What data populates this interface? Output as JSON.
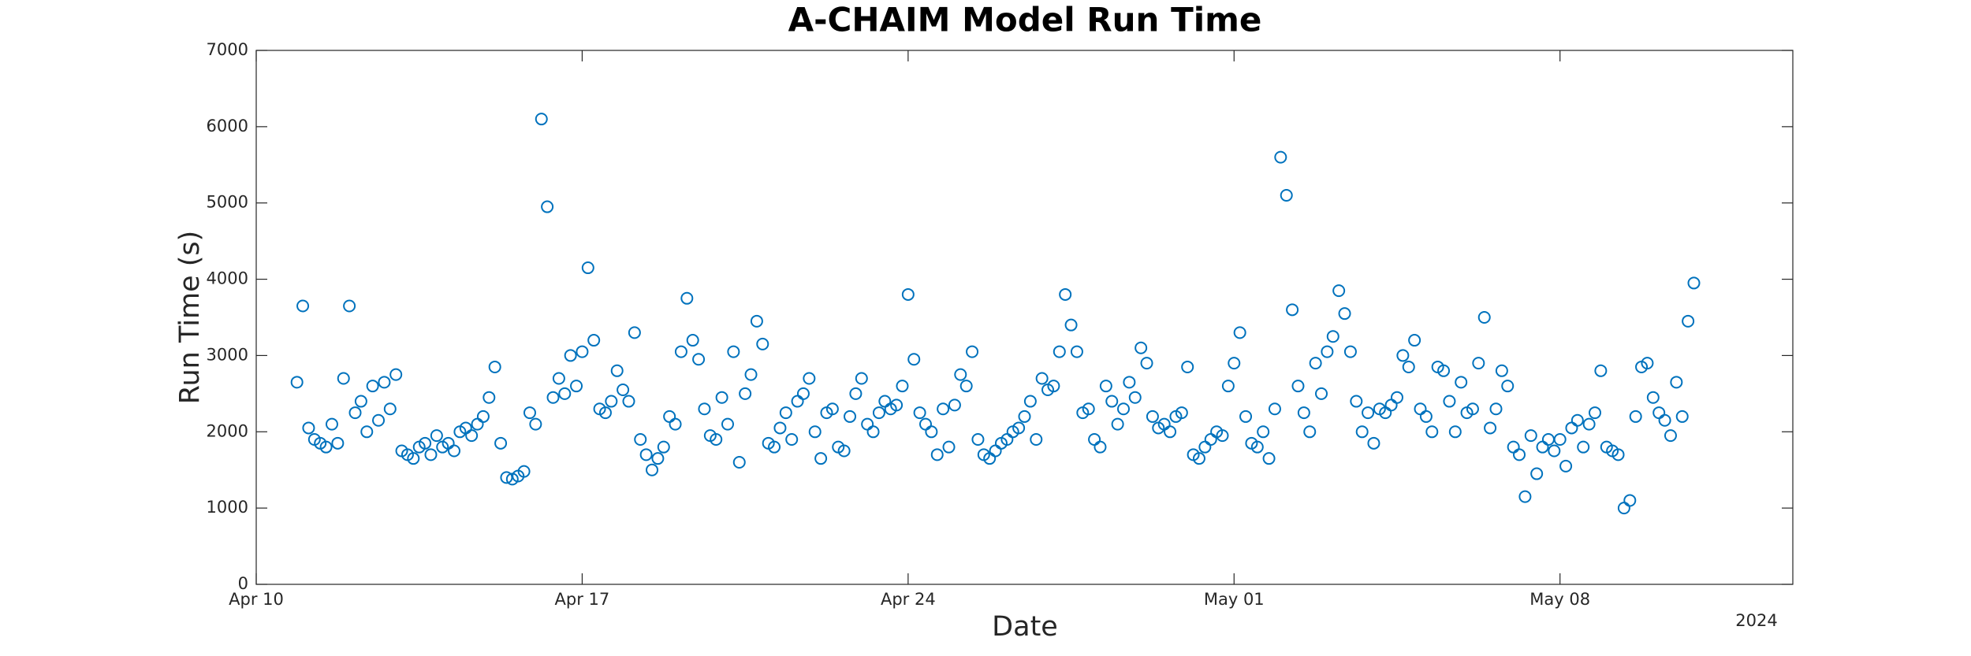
{
  "chart_data": {
    "type": "scatter",
    "title": "A-CHAIM Model Run Time",
    "xlabel": "Date",
    "ylabel": "Run Time (s)",
    "x_year_label": "2024",
    "xlim": [
      "2024-04-10",
      "2024-05-13"
    ],
    "xticks": [
      {
        "value": "2024-04-10",
        "label": "Apr 10"
      },
      {
        "value": "2024-04-17",
        "label": "Apr 17"
      },
      {
        "value": "2024-04-24",
        "label": "Apr 24"
      },
      {
        "value": "2024-05-01",
        "label": "May 01"
      },
      {
        "value": "2024-05-08",
        "label": "May 08"
      }
    ],
    "ylim": [
      0,
      7000
    ],
    "yticks": [
      0,
      1000,
      2000,
      3000,
      4000,
      5000,
      6000,
      7000
    ],
    "grid": false,
    "series": [
      {
        "name": "Run Time",
        "color": "#0072bd",
        "x": [
          "2024-04-10T21:00",
          "2024-04-11T00:00",
          "2024-04-11T03:00",
          "2024-04-11T06:00",
          "2024-04-11T09:00",
          "2024-04-11T12:00",
          "2024-04-11T15:00",
          "2024-04-11T18:00",
          "2024-04-11T21:00",
          "2024-04-12T00:00",
          "2024-04-12T03:00",
          "2024-04-12T06:00",
          "2024-04-12T09:00",
          "2024-04-12T12:00",
          "2024-04-12T15:00",
          "2024-04-12T18:00",
          "2024-04-12T21:00",
          "2024-04-13T00:00",
          "2024-04-13T03:00",
          "2024-04-13T06:00",
          "2024-04-13T09:00",
          "2024-04-13T12:00",
          "2024-04-13T15:00",
          "2024-04-13T18:00",
          "2024-04-13T21:00",
          "2024-04-14T00:00",
          "2024-04-14T03:00",
          "2024-04-14T06:00",
          "2024-04-14T09:00",
          "2024-04-14T12:00",
          "2024-04-14T15:00",
          "2024-04-14T18:00",
          "2024-04-14T21:00",
          "2024-04-15T00:00",
          "2024-04-15T03:00",
          "2024-04-15T06:00",
          "2024-04-15T09:00",
          "2024-04-15T12:00",
          "2024-04-15T15:00",
          "2024-04-15T18:00",
          "2024-04-15T21:00",
          "2024-04-16T00:00",
          "2024-04-16T03:00",
          "2024-04-16T06:00",
          "2024-04-16T09:00",
          "2024-04-16T12:00",
          "2024-04-16T15:00",
          "2024-04-16T18:00",
          "2024-04-16T21:00",
          "2024-04-17T00:00",
          "2024-04-17T03:00",
          "2024-04-17T06:00",
          "2024-04-17T09:00",
          "2024-04-17T12:00",
          "2024-04-17T15:00",
          "2024-04-17T18:00",
          "2024-04-17T21:00",
          "2024-04-18T00:00",
          "2024-04-18T03:00",
          "2024-04-18T06:00",
          "2024-04-18T09:00",
          "2024-04-18T12:00",
          "2024-04-18T15:00",
          "2024-04-18T18:00",
          "2024-04-18T21:00",
          "2024-04-19T00:00",
          "2024-04-19T03:00",
          "2024-04-19T06:00",
          "2024-04-19T09:00",
          "2024-04-19T12:00",
          "2024-04-19T15:00",
          "2024-04-19T18:00",
          "2024-04-19T21:00",
          "2024-04-20T00:00",
          "2024-04-20T03:00",
          "2024-04-20T06:00",
          "2024-04-20T09:00",
          "2024-04-20T12:00",
          "2024-04-20T15:00",
          "2024-04-20T18:00",
          "2024-04-20T21:00",
          "2024-04-21T00:00",
          "2024-04-21T03:00",
          "2024-04-21T06:00",
          "2024-04-21T09:00",
          "2024-04-21T12:00",
          "2024-04-21T15:00",
          "2024-04-21T18:00",
          "2024-04-21T21:00",
          "2024-04-22T00:00",
          "2024-04-22T03:00",
          "2024-04-22T06:00",
          "2024-04-22T09:00",
          "2024-04-22T12:00",
          "2024-04-22T15:00",
          "2024-04-22T18:00",
          "2024-04-22T21:00",
          "2024-04-23T00:00",
          "2024-04-23T03:00",
          "2024-04-23T06:00",
          "2024-04-23T09:00",
          "2024-04-23T12:00",
          "2024-04-23T15:00",
          "2024-04-23T18:00",
          "2024-04-23T21:00",
          "2024-04-24T00:00",
          "2024-04-24T03:00",
          "2024-04-24T06:00",
          "2024-04-24T09:00",
          "2024-04-24T12:00",
          "2024-04-24T15:00",
          "2024-04-24T18:00",
          "2024-04-24T21:00",
          "2024-04-25T00:00",
          "2024-04-25T03:00",
          "2024-04-25T06:00",
          "2024-04-25T09:00",
          "2024-04-25T12:00",
          "2024-04-25T15:00",
          "2024-04-25T18:00",
          "2024-04-25T21:00",
          "2024-04-26T00:00",
          "2024-04-26T03:00",
          "2024-04-26T06:00",
          "2024-04-26T09:00",
          "2024-04-26T12:00",
          "2024-04-26T15:00",
          "2024-04-26T18:00",
          "2024-04-26T21:00",
          "2024-04-27T00:00",
          "2024-04-27T03:00",
          "2024-04-27T06:00",
          "2024-04-27T09:00",
          "2024-04-27T12:00",
          "2024-04-27T15:00",
          "2024-04-27T18:00",
          "2024-04-27T21:00",
          "2024-04-28T00:00",
          "2024-04-28T03:00",
          "2024-04-28T06:00",
          "2024-04-28T09:00",
          "2024-04-28T12:00",
          "2024-04-28T15:00",
          "2024-04-28T18:00",
          "2024-04-28T21:00",
          "2024-04-29T00:00",
          "2024-04-29T03:00",
          "2024-04-29T06:00",
          "2024-04-29T09:00",
          "2024-04-29T12:00",
          "2024-04-29T15:00",
          "2024-04-29T18:00",
          "2024-04-29T21:00",
          "2024-04-30T00:00",
          "2024-04-30T03:00",
          "2024-04-30T06:00",
          "2024-04-30T09:00",
          "2024-04-30T12:00",
          "2024-04-30T15:00",
          "2024-04-30T18:00",
          "2024-04-30T21:00",
          "2024-05-01T00:00",
          "2024-05-01T03:00",
          "2024-05-01T06:00",
          "2024-05-01T09:00",
          "2024-05-01T12:00",
          "2024-05-01T15:00",
          "2024-05-01T18:00",
          "2024-05-01T21:00",
          "2024-05-02T00:00",
          "2024-05-02T03:00",
          "2024-05-02T06:00",
          "2024-05-02T09:00",
          "2024-05-02T12:00",
          "2024-05-02T15:00",
          "2024-05-02T18:00",
          "2024-05-02T21:00",
          "2024-05-03T00:00",
          "2024-05-03T03:00",
          "2024-05-03T06:00",
          "2024-05-03T09:00",
          "2024-05-03T12:00",
          "2024-05-03T15:00",
          "2024-05-03T18:00",
          "2024-05-03T21:00",
          "2024-05-04T00:00",
          "2024-05-04T03:00",
          "2024-05-04T06:00",
          "2024-05-04T09:00",
          "2024-05-04T12:00",
          "2024-05-04T15:00",
          "2024-05-04T18:00",
          "2024-05-04T21:00",
          "2024-05-05T00:00",
          "2024-05-05T03:00",
          "2024-05-05T06:00",
          "2024-05-05T09:00",
          "2024-05-05T12:00",
          "2024-05-05T15:00",
          "2024-05-05T18:00",
          "2024-05-05T21:00",
          "2024-05-06T00:00",
          "2024-05-06T03:00",
          "2024-05-06T06:00",
          "2024-05-06T09:00",
          "2024-05-06T12:00",
          "2024-05-06T15:00",
          "2024-05-06T18:00",
          "2024-05-06T21:00",
          "2024-05-07T00:00",
          "2024-05-07T03:00",
          "2024-05-07T06:00",
          "2024-05-07T09:00",
          "2024-05-07T12:00",
          "2024-05-07T15:00",
          "2024-05-07T18:00",
          "2024-05-07T21:00",
          "2024-05-08T00:00",
          "2024-05-08T03:00",
          "2024-05-08T06:00",
          "2024-05-08T09:00",
          "2024-05-08T12:00",
          "2024-05-08T15:00",
          "2024-05-08T18:00",
          "2024-05-08T21:00",
          "2024-05-09T00:00",
          "2024-05-09T03:00",
          "2024-05-09T06:00",
          "2024-05-09T09:00",
          "2024-05-09T12:00",
          "2024-05-09T15:00",
          "2024-05-09T18:00",
          "2024-05-09T21:00",
          "2024-05-10T00:00",
          "2024-05-10T03:00",
          "2024-05-10T06:00",
          "2024-05-10T09:00",
          "2024-05-10T12:00",
          "2024-05-10T15:00",
          "2024-05-10T18:00",
          "2024-05-10T21:00"
        ],
        "values": [
          2650,
          3650,
          2050,
          1900,
          1850,
          1800,
          2100,
          1850,
          2700,
          3650,
          2250,
          2400,
          2000,
          2600,
          2150,
          2650,
          2300,
          2750,
          1750,
          1700,
          1650,
          1800,
          1850,
          1700,
          1950,
          1800,
          1850,
          1750,
          2000,
          2050,
          1950,
          2100,
          2200,
          2450,
          2850,
          1850,
          1400,
          1380,
          1420,
          1480,
          2250,
          2100,
          6100,
          4950,
          2450,
          2700,
          2500,
          3000,
          2600,
          3050,
          4150,
          3200,
          2300,
          2250,
          2400,
          2800,
          2550,
          2400,
          3300,
          1900,
          1700,
          1500,
          1650,
          1800,
          2200,
          2100,
          3050,
          3750,
          3200,
          2950,
          2300,
          1950,
          1900,
          2450,
          2100,
          3050,
          1600,
          2500,
          2750,
          3450,
          3150,
          1850,
          1800,
          2050,
          2250,
          1900,
          2400,
          2500,
          2700,
          2000,
          1650,
          2250,
          2300,
          1800,
          1750,
          2200,
          2500,
          2700,
          2100,
          2000,
          2250,
          2400,
          2300,
          2350,
          2600,
          3800,
          2950,
          2250,
          2100,
          2000,
          1700,
          2300,
          1800,
          2350,
          2750,
          2600,
          3050,
          1900,
          1700,
          1650,
          1750,
          1850,
          1900,
          2000,
          2050,
          2200,
          2400,
          1900,
          2700,
          2550,
          2600,
          3050,
          3800,
          3400,
          3050,
          2250,
          2300,
          1900,
          1800,
          2600,
          2400,
          2100,
          2300,
          2650,
          2450,
          3100,
          2900,
          2200,
          2050,
          2100,
          2000,
          2200,
          2250,
          2850,
          1700,
          1650,
          1800,
          1900,
          2000,
          1950,
          2600,
          2900,
          3300,
          2200,
          1850,
          1800,
          2000,
          1650,
          2300,
          5600,
          5100,
          3600,
          2600,
          2250,
          2000,
          2900,
          2500,
          3050,
          3250,
          3850,
          3550,
          3050,
          2400,
          2000,
          2250,
          1850,
          2300,
          2250,
          2350,
          2450,
          3000,
          2850,
          3200,
          2300,
          2200,
          2000,
          2850,
          2800,
          2400,
          2000,
          2650,
          2250,
          2300,
          2900,
          3500,
          2050,
          2300,
          2800,
          2600,
          1800,
          1700,
          1150,
          1950,
          1450,
          1800,
          1900,
          1750,
          1900,
          1550,
          2050,
          2150,
          1800,
          2100,
          2250,
          2800,
          1800,
          1750,
          1700,
          1000,
          1100,
          2200,
          2850,
          2900,
          2450,
          2250,
          2150,
          1950,
          2650,
          2200,
          3450,
          3950
        ]
      }
    ]
  }
}
